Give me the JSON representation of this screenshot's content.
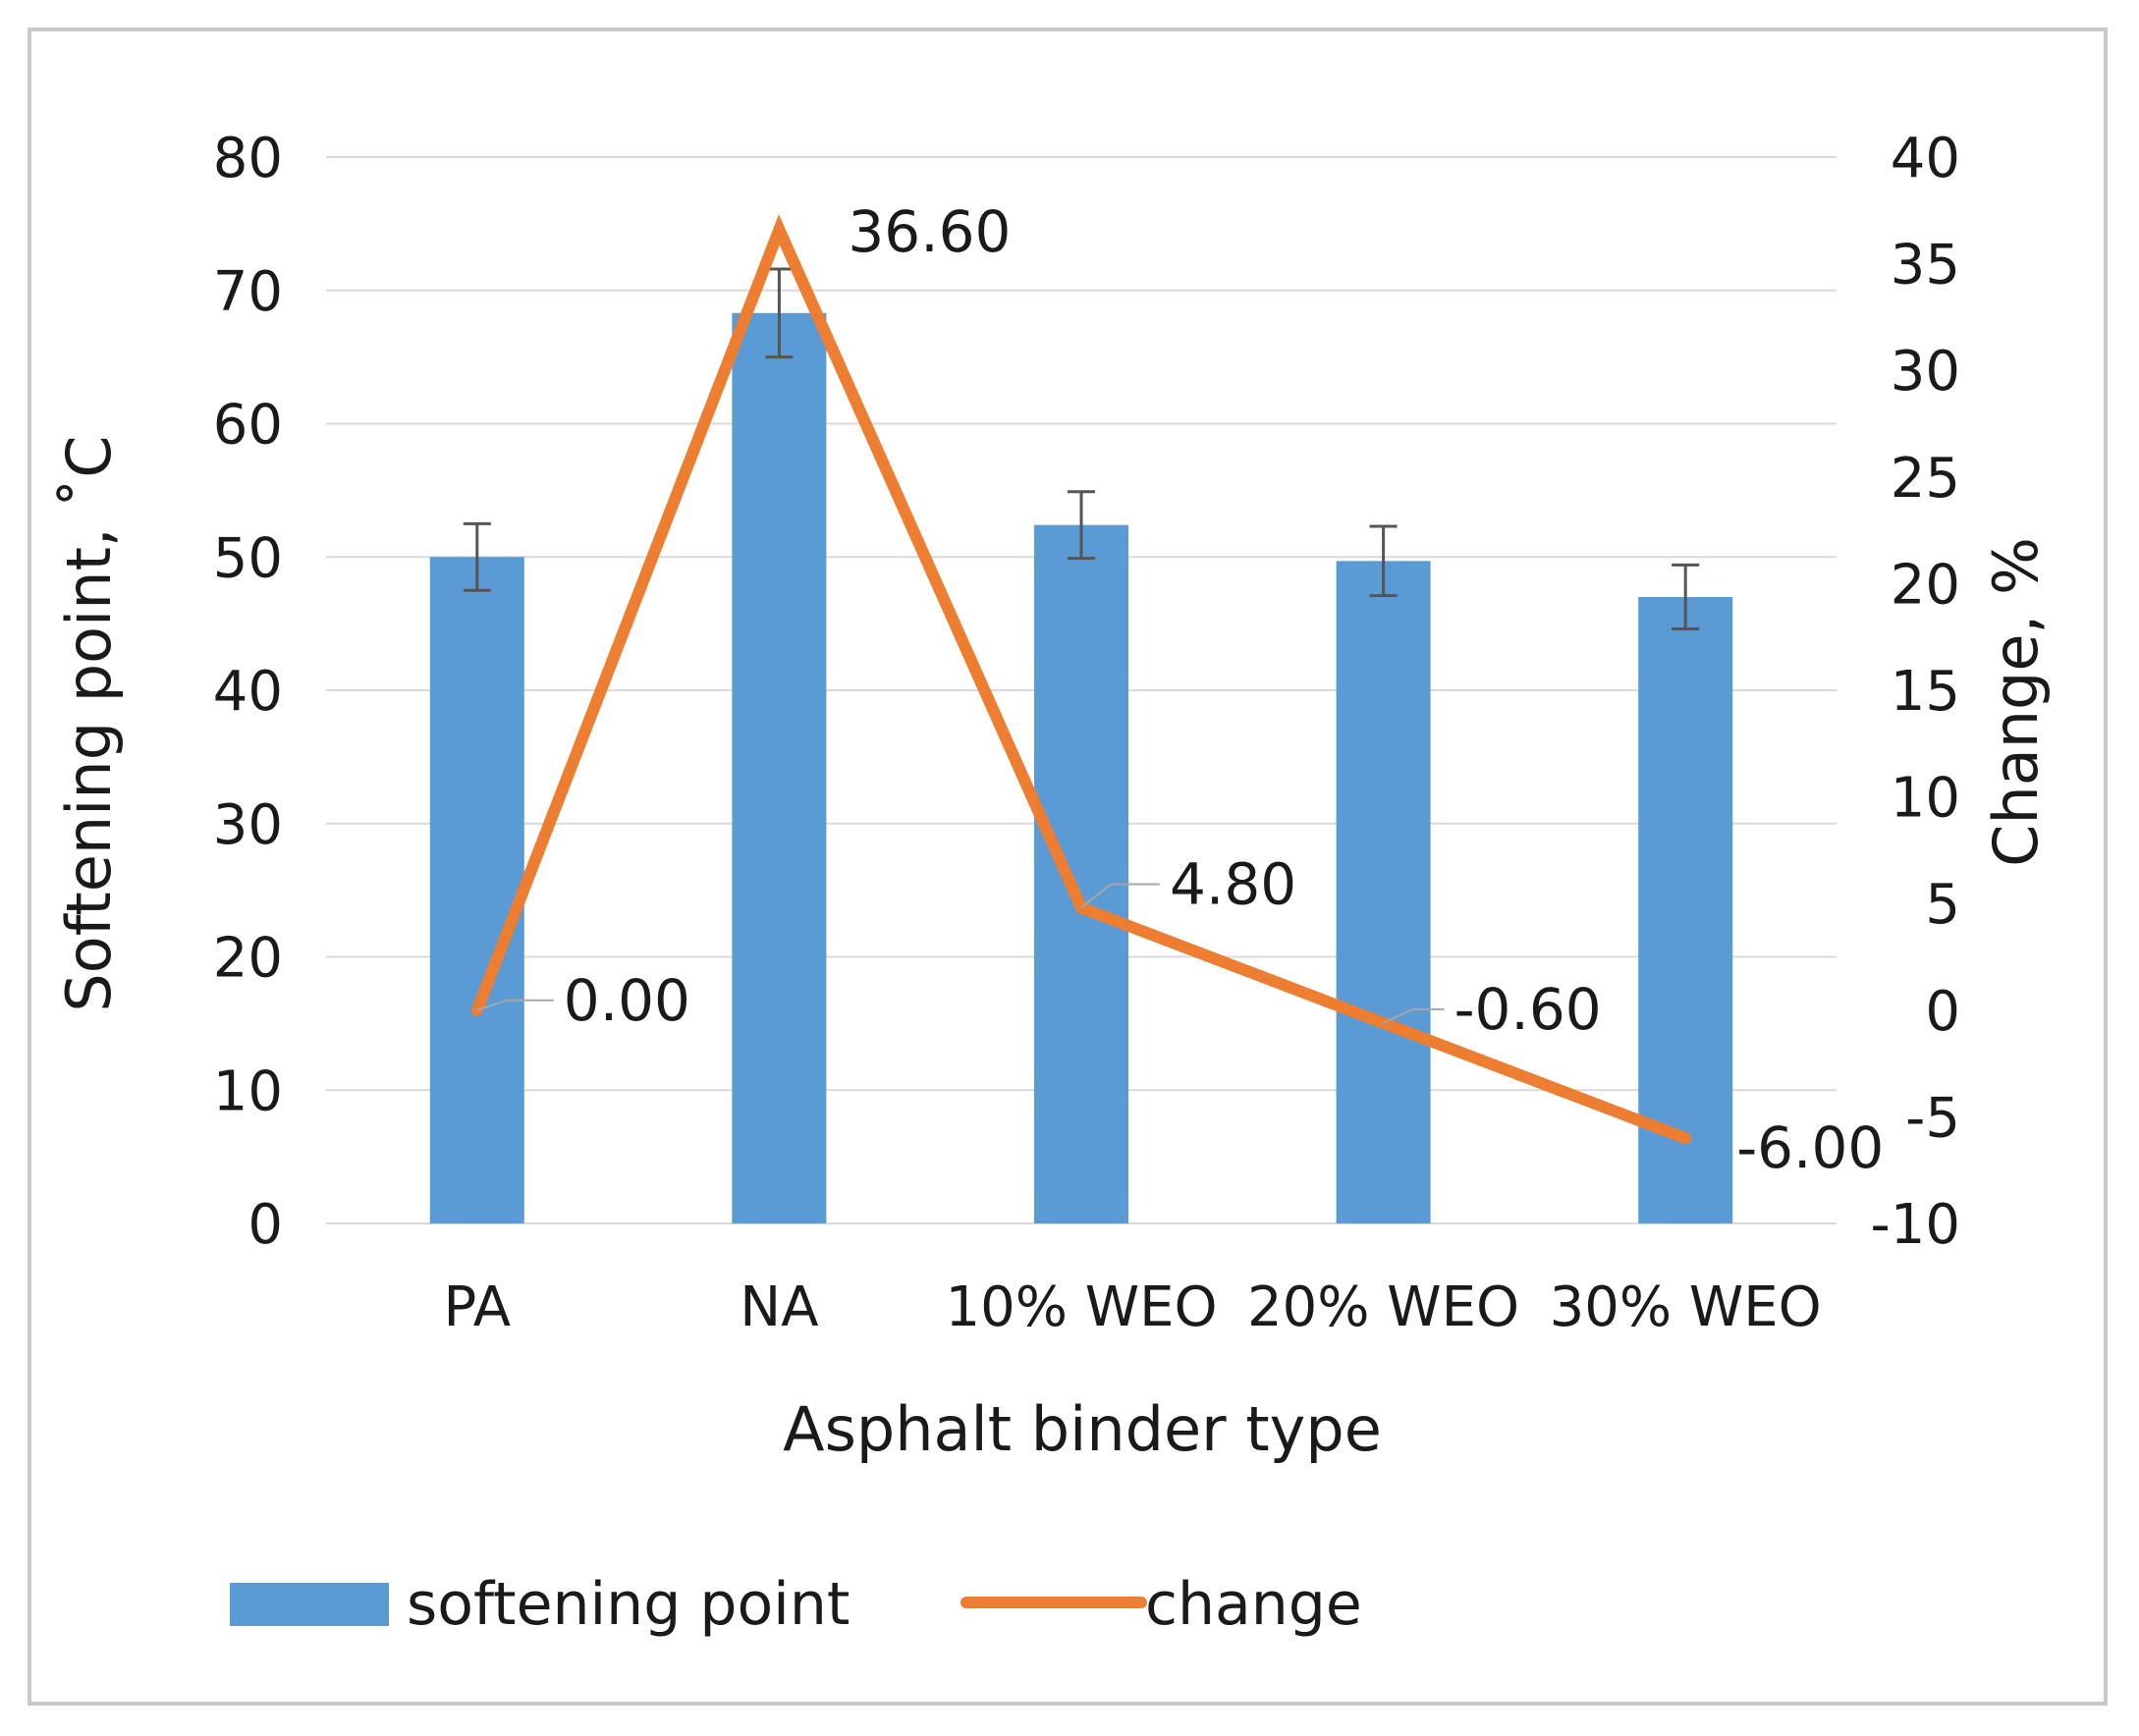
{
  "chart_data": {
    "type": "bar+line",
    "categories": [
      "PA",
      "NA",
      "10% WEO",
      "20% WEO",
      "30% WEO"
    ],
    "series": [
      {
        "name": "softening point",
        "kind": "bar",
        "axis": "left",
        "values": [
          50.0,
          68.3,
          52.4,
          49.7,
          47.0
        ],
        "error": [
          2.5,
          3.3,
          2.5,
          2.6,
          2.4
        ],
        "color": "#5b9bd5"
      },
      {
        "name": "change",
        "kind": "line",
        "axis": "right",
        "values": [
          0.0,
          36.6,
          4.8,
          -0.6,
          -6.0
        ],
        "labels": [
          "0.00",
          "36.60",
          "4.80",
          "-0.60",
          "-6.00"
        ],
        "color": "#ed7d31"
      }
    ],
    "xlabel": "Asphalt binder type",
    "ylabel": "Softening point, ˚C",
    "y2label": "Change, %",
    "ylim": [
      0,
      80
    ],
    "y_ticks": [
      "0",
      "10",
      "20",
      "30",
      "40",
      "50",
      "60",
      "70",
      "80"
    ],
    "y2lim": [
      -10,
      40
    ],
    "y2_ticks": [
      "-10",
      "-5",
      "0",
      "5",
      "10",
      "15",
      "20",
      "25",
      "30",
      "35",
      "40"
    ],
    "grid": true,
    "legend": "bottom",
    "gridline_color": "#d9d9d9",
    "error_bar_color": "#555555"
  }
}
